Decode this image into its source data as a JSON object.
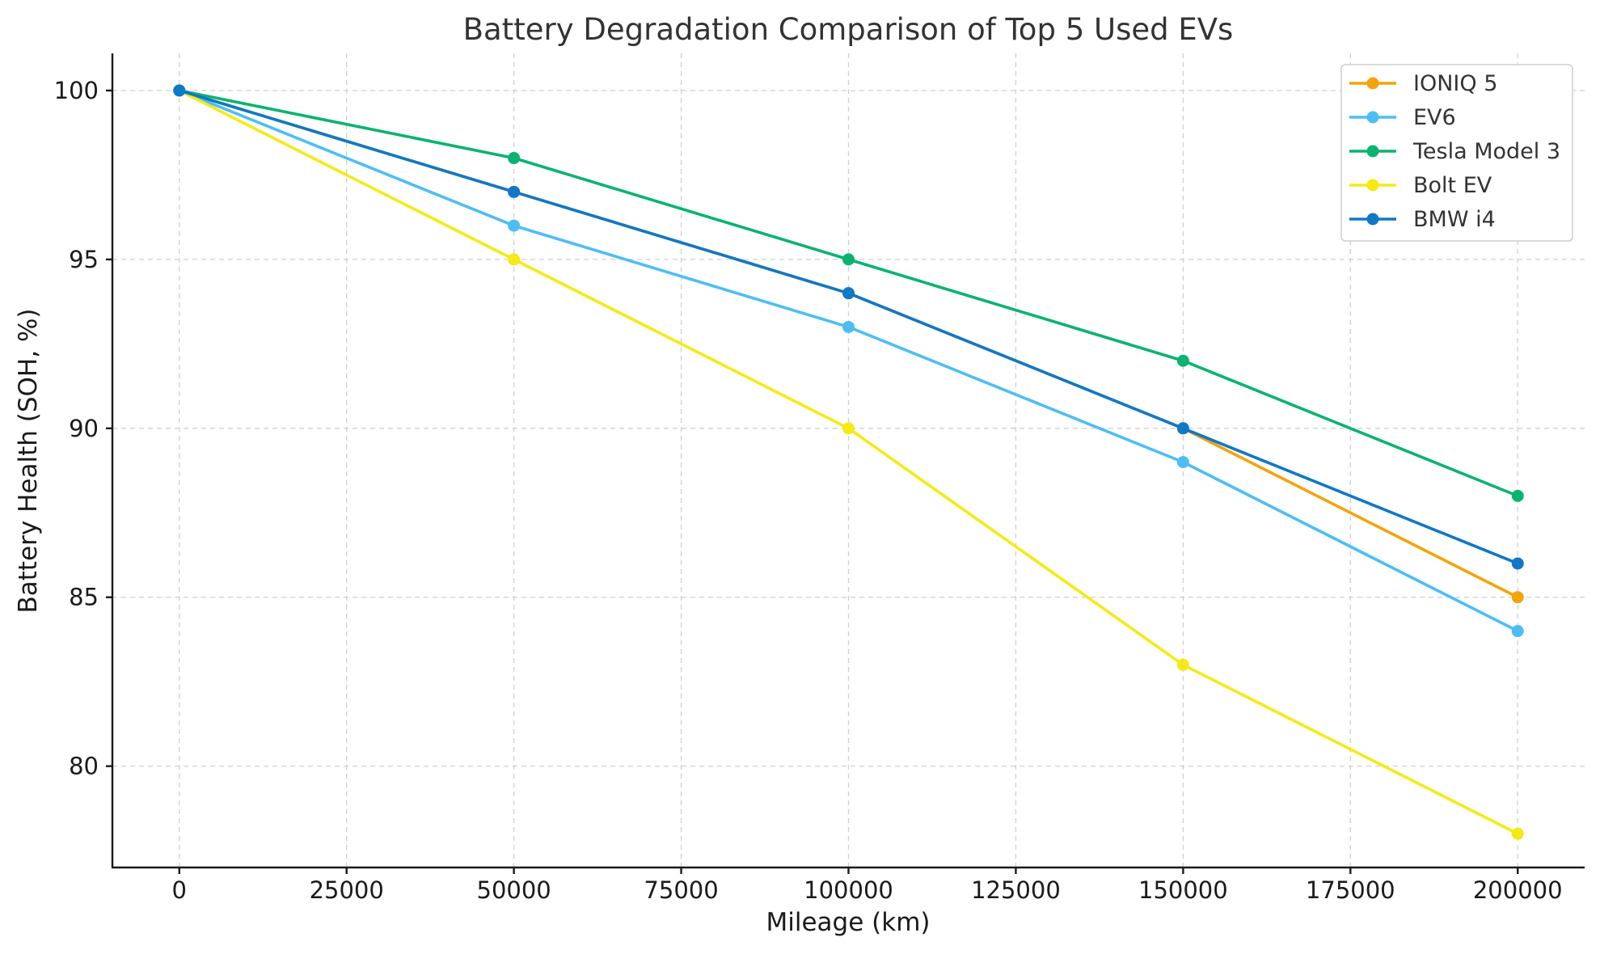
{
  "chart_data": {
    "type": "line",
    "title": "Battery Degradation Comparison of Top 5 Used EVs",
    "xlabel": "Mileage (km)",
    "ylabel": "Battery Health (SOH, %)",
    "x": [
      0,
      50000,
      100000,
      150000,
      200000
    ],
    "xlim": [
      -10000,
      210000
    ],
    "ylim": [
      77,
      101.1
    ],
    "xticks": [
      0,
      25000,
      50000,
      75000,
      100000,
      125000,
      150000,
      175000,
      200000
    ],
    "yticks": [
      80,
      85,
      90,
      95,
      100
    ],
    "grid": true,
    "legend_position": "top-right",
    "series": [
      {
        "name": "IONIQ 5",
        "color": "#f5a30a",
        "values": [
          100,
          97,
          94,
          90,
          85
        ]
      },
      {
        "name": "EV6",
        "color": "#4dbef5",
        "values": [
          100,
          96,
          93,
          89,
          84
        ]
      },
      {
        "name": "Tesla Model 3",
        "color": "#0ab46e",
        "values": [
          100,
          98,
          95,
          92,
          88
        ]
      },
      {
        "name": "Bolt EV",
        "color": "#f5ea14",
        "values": [
          100,
          95,
          90,
          83,
          78
        ]
      },
      {
        "name": "BMW i4",
        "color": "#0f78c8",
        "values": [
          100,
          97,
          94,
          90,
          86
        ]
      }
    ]
  }
}
